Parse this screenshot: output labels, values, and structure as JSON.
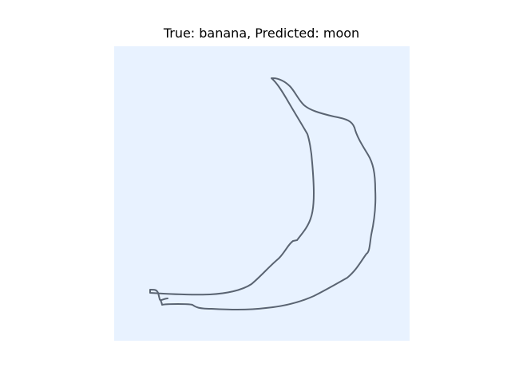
{
  "figure": {
    "title": "True: banana, Predicted: moon"
  },
  "panel": {
    "background": "#e8f2ff",
    "stroke_color": "#4a5463"
  }
}
